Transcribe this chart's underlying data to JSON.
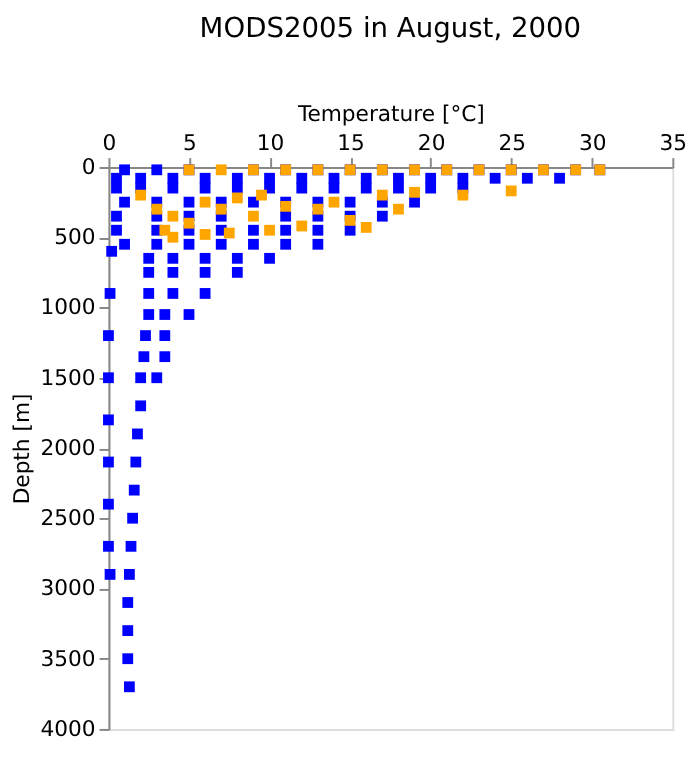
{
  "chart_data": {
    "type": "scatter",
    "title": "MODS2005 in August, 2000",
    "xlabel": "Temperature [°C]",
    "ylabel": "Depth [m]",
    "xlim": [
      0,
      35
    ],
    "xticks": [
      0,
      5,
      10,
      15,
      20,
      25,
      30,
      35
    ],
    "ylim": [
      4000,
      0
    ],
    "yticks": [
      0,
      500,
      1000,
      1500,
      2000,
      2500,
      3000,
      3500,
      4000
    ],
    "grid": false,
    "legend": false,
    "marker": "square",
    "series": [
      {
        "color": "#0000ff",
        "x": [
          1,
          3,
          5,
          7,
          9,
          11,
          13,
          15,
          17,
          19,
          21,
          23,
          25,
          27,
          29,
          30.5,
          0.5,
          2,
          4,
          6,
          8,
          10,
          12,
          14,
          16,
          18,
          20,
          22,
          24,
          26,
          28,
          0.5,
          2,
          4,
          6,
          8,
          10,
          12,
          14,
          16,
          18,
          20,
          22,
          1,
          3,
          5,
          7,
          9,
          11,
          13,
          15,
          17,
          19,
          0.5,
          3,
          5,
          7,
          9,
          11,
          13,
          15,
          17,
          0.5,
          3,
          5,
          7,
          9,
          11,
          13,
          15,
          1,
          3,
          5,
          7,
          9,
          11,
          13,
          2.5,
          4,
          6,
          8,
          10,
          2.5,
          4,
          6,
          8,
          2.5,
          4,
          6,
          2.5,
          3.5,
          5,
          2.3,
          3.5,
          2.2,
          3.5,
          2,
          3,
          2,
          1.8,
          1.7,
          1.6,
          1.5,
          1.4,
          1.3,
          1.2,
          1.2,
          1.2,
          1.3,
          0.2,
          0.1,
          0,
          0,
          0,
          0,
          0,
          0,
          0.1
        ],
        "values": [
          20,
          20,
          20,
          null,
          20,
          20,
          20,
          20,
          20,
          20,
          20,
          20,
          20,
          20,
          20,
          20,
          80,
          80,
          80,
          80,
          80,
          80,
          80,
          80,
          80,
          80,
          80,
          80,
          80,
          80,
          80,
          150,
          150,
          150,
          150,
          150,
          150,
          150,
          150,
          150,
          150,
          150,
          150,
          250,
          250,
          250,
          250,
          250,
          250,
          250,
          250,
          250,
          250,
          350,
          350,
          350,
          350,
          null,
          350,
          350,
          350,
          350,
          450,
          450,
          450,
          450,
          450,
          450,
          450,
          450,
          550,
          550,
          550,
          550,
          550,
          550,
          550,
          650,
          650,
          650,
          650,
          650,
          750,
          750,
          750,
          750,
          900,
          900,
          900,
          1050,
          1050,
          1050,
          1200,
          1200,
          1350,
          1350,
          1500,
          1500,
          1700,
          1900,
          2100,
          2300,
          2500,
          2700,
          2900,
          3100,
          3300,
          3500,
          3700,
          600,
          900,
          1200,
          1500,
          1800,
          2100,
          2400,
          2700,
          2900
        ]
      },
      {
        "color": "#ffa500",
        "x": [
          5,
          7,
          9,
          11,
          13,
          15,
          17,
          19,
          21,
          23,
          25,
          27,
          29,
          30.5,
          2,
          3,
          4,
          3.5,
          4,
          5,
          6,
          7,
          8,
          9,
          10,
          11,
          12,
          13,
          14,
          15,
          17,
          18,
          19,
          22,
          25,
          7.5,
          6,
          9.5,
          16
        ],
        "values": [
          20,
          20,
          20,
          20,
          20,
          20,
          20,
          20,
          20,
          20,
          20,
          20,
          20,
          20,
          200,
          300,
          350,
          450,
          500,
          400,
          250,
          300,
          220,
          350,
          450,
          280,
          420,
          300,
          250,
          380,
          200,
          300,
          180,
          200,
          170,
          470,
          480,
          200,
          430
        ]
      }
    ]
  }
}
